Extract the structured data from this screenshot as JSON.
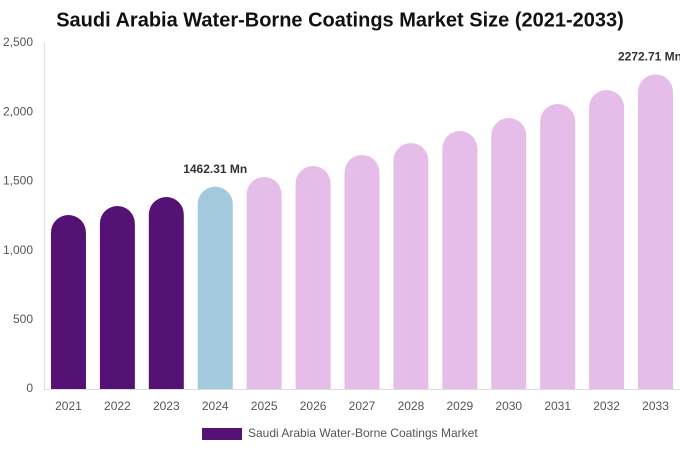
{
  "chart_data": {
    "type": "bar",
    "title": "Saudi Arabia Water-Borne Coatings Market Size (2021-2033)",
    "categories": [
      "2021",
      "2022",
      "2023",
      "2024",
      "2025",
      "2026",
      "2027",
      "2028",
      "2029",
      "2030",
      "2031",
      "2032",
      "2033"
    ],
    "series": [
      {
        "name": "Saudi Arabia Water-Borne Coatings Market",
        "color": "#541274",
        "values": [
          1257,
          1322,
          1387,
          1462.31,
          1532,
          1611,
          1691,
          1777,
          1864,
          1958,
          2059,
          2160,
          2272.71
        ],
        "value_labels": [
          null,
          null,
          null,
          "1462.31 Mn",
          null,
          null,
          null,
          null,
          null,
          null,
          null,
          null,
          "2272.71 Mn"
        ],
        "colors": [
          "#541274",
          "#541274",
          "#541274",
          "#a3c9de",
          "#e6bde8",
          "#e6bde8",
          "#e6bde8",
          "#e6bde8",
          "#e6bde8",
          "#e6bde8",
          "#e6bde8",
          "#e6bde8",
          "#e6bde8"
        ]
      }
    ],
    "ylim": [
      0,
      2500
    ],
    "yticks": [
      0,
      500,
      {
        "value": 1000,
        "label": "1,000"
      },
      {
        "value": 1500,
        "label": "1,500"
      },
      {
        "value": 2000,
        "label": "2,000"
      },
      {
        "value": 2500,
        "label": "2,500"
      }
    ],
    "grid": false,
    "legend": "bottom"
  }
}
